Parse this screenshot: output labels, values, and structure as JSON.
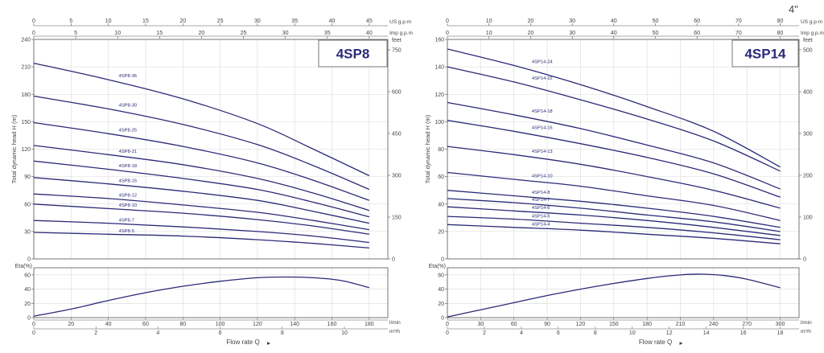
{
  "page_mark": "4\"",
  "chart_data": [
    {
      "type": "line",
      "title": "4SP8",
      "ylabel": "Total dynamic head H (m)",
      "ylim": [
        0,
        240
      ],
      "yticks": [
        0,
        30,
        60,
        90,
        120,
        150,
        180,
        210,
        240
      ],
      "feet_label": "feet",
      "feet_ticks": [
        0,
        150,
        300,
        450,
        600,
        750
      ],
      "feet_max": 787.4,
      "top_scales": [
        {
          "label": "US g.p.m",
          "ticks": [
            "0",
            "5",
            "10",
            "15",
            "20",
            "25",
            "30",
            "35",
            "40",
            "45"
          ],
          "values": [
            0,
            5,
            10,
            15,
            20,
            25,
            30,
            35,
            40,
            45
          ],
          "max": 45
        },
        {
          "label": "Imp g.p.m",
          "ticks": [
            "0",
            "5",
            "10",
            "15",
            "20",
            "25",
            "30",
            "35",
            "40"
          ],
          "values": [
            0,
            5,
            10,
            15,
            20,
            25,
            30,
            35,
            40
          ],
          "max": 40
        }
      ],
      "bottom_scales": [
        {
          "label": "l/min",
          "ticks": [
            "0",
            "20",
            "40",
            "60",
            "80",
            "100",
            "120",
            "140",
            "160",
            "180"
          ],
          "values": [
            0,
            20,
            40,
            60,
            80,
            100,
            120,
            140,
            160,
            180
          ],
          "max": 180
        },
        {
          "label": "m³/h",
          "ticks": [
            "0",
            "2",
            "4",
            "6",
            "8",
            "10"
          ],
          "values": [
            0,
            2,
            4,
            6,
            8,
            10
          ],
          "max": 10.8
        }
      ],
      "xlabel": "Flow rate Q",
      "xlim": [
        0,
        190
      ],
      "series": [
        {
          "name": "4SP8-36",
          "values": [
            [
              0,
              214
            ],
            [
              40,
              196
            ],
            [
              80,
              175
            ],
            [
              120,
              148
            ],
            [
              150,
              120
            ],
            [
              180,
              91
            ]
          ]
        },
        {
          "name": "4SP8-30",
          "values": [
            [
              0,
              178
            ],
            [
              40,
              164
            ],
            [
              80,
              147
            ],
            [
              120,
              125
            ],
            [
              150,
              102
            ],
            [
              180,
              76
            ]
          ]
        },
        {
          "name": "4SP8-25",
          "values": [
            [
              0,
              149
            ],
            [
              40,
              137
            ],
            [
              80,
              123
            ],
            [
              120,
              105
            ],
            [
              150,
              86
            ],
            [
              180,
              64
            ]
          ]
        },
        {
          "name": "4SP8-21",
          "values": [
            [
              0,
              124
            ],
            [
              40,
              114
            ],
            [
              80,
              103
            ],
            [
              120,
              88
            ],
            [
              150,
              72
            ],
            [
              180,
              53
            ]
          ]
        },
        {
          "name": "4SP8-18",
          "values": [
            [
              0,
              107
            ],
            [
              40,
              98
            ],
            [
              80,
              88
            ],
            [
              120,
              76
            ],
            [
              150,
              62
            ],
            [
              180,
              46
            ]
          ]
        },
        {
          "name": "4SP8-15",
          "values": [
            [
              0,
              89
            ],
            [
              40,
              82
            ],
            [
              80,
              74
            ],
            [
              120,
              64
            ],
            [
              150,
              52
            ],
            [
              180,
              39
            ]
          ]
        },
        {
          "name": "4SP8-12",
          "values": [
            [
              0,
              71
            ],
            [
              40,
              66
            ],
            [
              80,
              59
            ],
            [
              120,
              51
            ],
            [
              150,
              42
            ],
            [
              180,
              32
            ]
          ]
        },
        {
          "name": "4SP8-10",
          "values": [
            [
              0,
              60
            ],
            [
              40,
              55
            ],
            [
              80,
              50
            ],
            [
              120,
              43
            ],
            [
              150,
              36
            ],
            [
              180,
              27
            ]
          ]
        },
        {
          "name": "4SP8-7",
          "values": [
            [
              0,
              42
            ],
            [
              40,
              39
            ],
            [
              80,
              35
            ],
            [
              120,
              30
            ],
            [
              150,
              25
            ],
            [
              180,
              18
            ]
          ]
        },
        {
          "name": "4SP8-5",
          "values": [
            [
              0,
              29
            ],
            [
              40,
              27
            ],
            [
              80,
              25
            ],
            [
              120,
              21
            ],
            [
              150,
              17
            ],
            [
              180,
              12
            ]
          ]
        }
      ],
      "eta": {
        "label": "Eta(%)",
        "ylim": [
          0,
          70
        ],
        "yticks": [
          0,
          20,
          40,
          60
        ],
        "values": [
          [
            0,
            2
          ],
          [
            20,
            12
          ],
          [
            40,
            24
          ],
          [
            60,
            35
          ],
          [
            80,
            44
          ],
          [
            100,
            51
          ],
          [
            120,
            56
          ],
          [
            135,
            57
          ],
          [
            150,
            56
          ],
          [
            165,
            52
          ],
          [
            180,
            42
          ]
        ]
      }
    },
    {
      "type": "line",
      "title": "4SP14",
      "ylabel": "Total dynamic head H (m)",
      "ylim": [
        0,
        160
      ],
      "yticks": [
        0,
        20,
        40,
        60,
        80,
        100,
        120,
        140,
        160
      ],
      "feet_label": "feet",
      "feet_ticks": [
        0,
        100,
        200,
        300,
        400,
        500
      ],
      "feet_max": 524.9,
      "top_scales": [
        {
          "label": "US g.p.m",
          "ticks": [
            "0",
            "10",
            "20",
            "30",
            "40",
            "50",
            "60",
            "70",
            "80"
          ],
          "values": [
            0,
            10,
            20,
            30,
            40,
            50,
            60,
            70,
            80
          ],
          "max": 80
        },
        {
          "label": "Imp g.p.m",
          "ticks": [
            "0",
            "10",
            "20",
            "30",
            "40",
            "50",
            "60",
            "70",
            "80"
          ],
          "values": [
            0,
            10,
            20,
            30,
            40,
            50,
            60,
            70,
            80
          ],
          "max": 80
        }
      ],
      "bottom_scales": [
        {
          "label": "l/min",
          "ticks": [
            "0",
            "30",
            "60",
            "90",
            "120",
            "150",
            "180",
            "210",
            "240",
            "270",
            "300"
          ],
          "values": [
            0,
            30,
            60,
            90,
            120,
            150,
            180,
            210,
            240,
            270,
            300
          ],
          "max": 300
        },
        {
          "label": "m³/h",
          "ticks": [
            "0",
            "2",
            "4",
            "6",
            "8",
            "10",
            "12",
            "14",
            "16",
            "18"
          ],
          "values": [
            0,
            2,
            4,
            6,
            8,
            10,
            12,
            14,
            16,
            18
          ],
          "max": 18
        }
      ],
      "xlabel": "Flow rate Q",
      "xlim": [
        0,
        317
      ],
      "series": [
        {
          "name": "4SP14-24",
          "values": [
            [
              0,
              153
            ],
            [
              60,
              141
            ],
            [
              120,
              127
            ],
            [
              180,
              111
            ],
            [
              240,
              93
            ],
            [
              300,
              67
            ]
          ]
        },
        {
          "name": "4SP14-22",
          "values": [
            [
              0,
              140
            ],
            [
              60,
              129
            ],
            [
              120,
              116
            ],
            [
              180,
              102
            ],
            [
              240,
              86
            ],
            [
              300,
              64
            ]
          ]
        },
        {
          "name": "4SP14-18",
          "values": [
            [
              0,
              114
            ],
            [
              60,
              105
            ],
            [
              120,
              95
            ],
            [
              180,
              83
            ],
            [
              240,
              70
            ],
            [
              300,
              51
            ]
          ]
        },
        {
          "name": "4SP14-16",
          "values": [
            [
              0,
              101
            ],
            [
              60,
              93
            ],
            [
              120,
              84
            ],
            [
              180,
              74
            ],
            [
              240,
              62
            ],
            [
              300,
              45
            ]
          ]
        },
        {
          "name": "4SP14-13",
          "values": [
            [
              0,
              82
            ],
            [
              60,
              76
            ],
            [
              120,
              69
            ],
            [
              180,
              60
            ],
            [
              240,
              50
            ],
            [
              300,
              37
            ]
          ]
        },
        {
          "name": "4SP14-10",
          "values": [
            [
              0,
              63
            ],
            [
              60,
              58
            ],
            [
              120,
              53
            ],
            [
              180,
              46
            ],
            [
              240,
              39
            ],
            [
              300,
              28
            ]
          ]
        },
        {
          "name": "4SP14-8",
          "values": [
            [
              0,
              50
            ],
            [
              60,
              46
            ],
            [
              120,
              42
            ],
            [
              180,
              37
            ],
            [
              240,
              31
            ],
            [
              300,
              23
            ]
          ]
        },
        {
          "name": "4SP14-7",
          "values": [
            [
              0,
              44
            ],
            [
              60,
              41
            ],
            [
              120,
              37
            ],
            [
              180,
              32
            ],
            [
              240,
              27
            ],
            [
              300,
              20
            ]
          ]
        },
        {
          "name": "4SP14-6",
          "values": [
            [
              0,
              38
            ],
            [
              60,
              35
            ],
            [
              120,
              32
            ],
            [
              180,
              28
            ],
            [
              240,
              23
            ],
            [
              300,
              17
            ]
          ]
        },
        {
          "name": "4SP14-5",
          "values": [
            [
              0,
              31
            ],
            [
              60,
              29
            ],
            [
              120,
              26
            ],
            [
              180,
              23
            ],
            [
              240,
              19
            ],
            [
              300,
              14
            ]
          ]
        },
        {
          "name": "4SP14-4",
          "values": [
            [
              0,
              25
            ],
            [
              60,
              23
            ],
            [
              120,
              21
            ],
            [
              180,
              18
            ],
            [
              240,
              15
            ],
            [
              300,
              11
            ]
          ]
        }
      ],
      "eta": {
        "label": "Eta(%)",
        "ylim": [
          0,
          70
        ],
        "yticks": [
          0,
          20,
          40,
          60
        ],
        "values": [
          [
            0,
            1
          ],
          [
            30,
            11
          ],
          [
            60,
            21
          ],
          [
            90,
            31
          ],
          [
            120,
            40
          ],
          [
            150,
            48
          ],
          [
            180,
            55
          ],
          [
            210,
            60
          ],
          [
            230,
            61
          ],
          [
            250,
            59
          ],
          [
            270,
            54
          ],
          [
            300,
            42
          ]
        ]
      }
    }
  ]
}
